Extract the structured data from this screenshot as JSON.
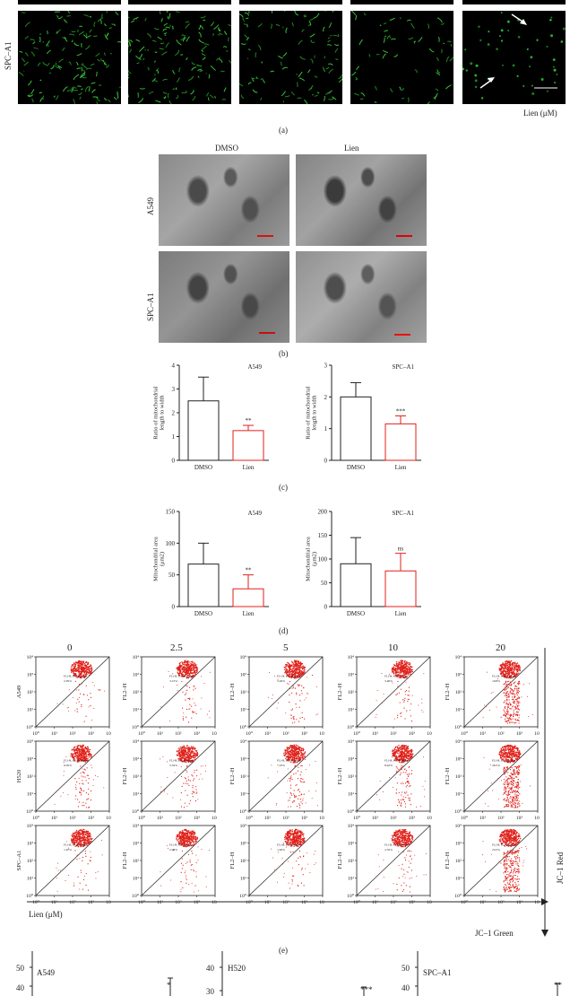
{
  "panel_a": {
    "row_label": "SPC–A1",
    "axis_note": "Lien (μM)",
    "caption": "(a)"
  },
  "panel_b": {
    "col_labels": [
      "DMSO",
      "Lien"
    ],
    "row_labels": [
      "A549",
      "SPC–A1"
    ],
    "caption": "(b)"
  },
  "panel_c": {
    "caption": "(c)",
    "chart_data": [
      {
        "type": "bar",
        "title": "A549",
        "ylabel": "Ratio of mitochondrial length to width",
        "categories": [
          "DMSO",
          "Lien"
        ],
        "values": [
          2.5,
          1.25
        ],
        "errors": [
          1.0,
          0.22
        ],
        "ylim": [
          0,
          4
        ],
        "yticks": [
          "0",
          "1",
          "2",
          "3",
          "4"
        ],
        "significance": [
          "",
          "**"
        ]
      },
      {
        "type": "bar",
        "title": "SPC–A1",
        "ylabel": "Ratio of mitochondrial length to width",
        "categories": [
          "DMSO",
          "Lien"
        ],
        "values": [
          2.0,
          1.15
        ],
        "errors": [
          0.45,
          0.25
        ],
        "ylim": [
          0,
          3
        ],
        "yticks": [
          "0",
          "1",
          "2",
          "3"
        ],
        "significance": [
          "",
          "***"
        ]
      }
    ]
  },
  "panel_d": {
    "caption": "(d)",
    "chart_data": [
      {
        "type": "bar",
        "title": "A549",
        "ylabel": "Mitochondrial area (μm2)",
        "categories": [
          "DMSO",
          "Lien"
        ],
        "values": [
          67,
          28
        ],
        "errors": [
          33,
          22
        ],
        "ylim": [
          0,
          150
        ],
        "yticks": [
          "0",
          "50",
          "100",
          "150"
        ],
        "significance": [
          "",
          "**"
        ]
      },
      {
        "type": "bar",
        "title": "SPC–A1",
        "ylabel": "Mitochondrial area (μm2)",
        "categories": [
          "DMSO",
          "Lien"
        ],
        "values": [
          90,
          75
        ],
        "errors": [
          55,
          37
        ],
        "ylim": [
          0,
          200
        ],
        "yticks": [
          "0",
          "50",
          "100",
          "150",
          "200"
        ],
        "significance": [
          "",
          "ns"
        ]
      }
    ]
  },
  "panel_e": {
    "caption": "(e)",
    "col_labels": [
      "0",
      "2.5",
      "5",
      "10",
      "20"
    ],
    "row_labels": [
      "A549",
      "H520",
      "SPC–A1"
    ],
    "ylabel_other": "FL2–H",
    "gate_label": "FL1-H, FL2-H subset",
    "percents": [
      [
        "2.05%",
        "3.15%",
        "5.02%",
        "3.40%",
        "19.8%"
      ],
      [
        "6.05%",
        "5.32%",
        "7.23%",
        "8.42%",
        "26.5%"
      ],
      [
        "1.97%",
        "2.98%",
        "1.92%",
        "2.35%",
        "23.5%"
      ]
    ],
    "xticks": [
      "10⁰",
      "10¹",
      "10²",
      "10³",
      "10⁴"
    ],
    "yticks": [
      "10⁴",
      "10³",
      "10²",
      "10¹",
      "10⁰"
    ],
    "bottom_left": "Lien (μM)",
    "bottom_right": "JC–1 Green",
    "right_axis": "JC–1 Red",
    "red_color": "#e0201a"
  },
  "panel_f": {
    "titles": [
      "A549",
      "H520",
      "SPC–A1"
    ],
    "ytop": [
      "50",
      "40",
      "50"
    ],
    "ysecond": [
      "40",
      "30",
      "40"
    ],
    "marks": [
      "*",
      "***",
      "**"
    ]
  }
}
